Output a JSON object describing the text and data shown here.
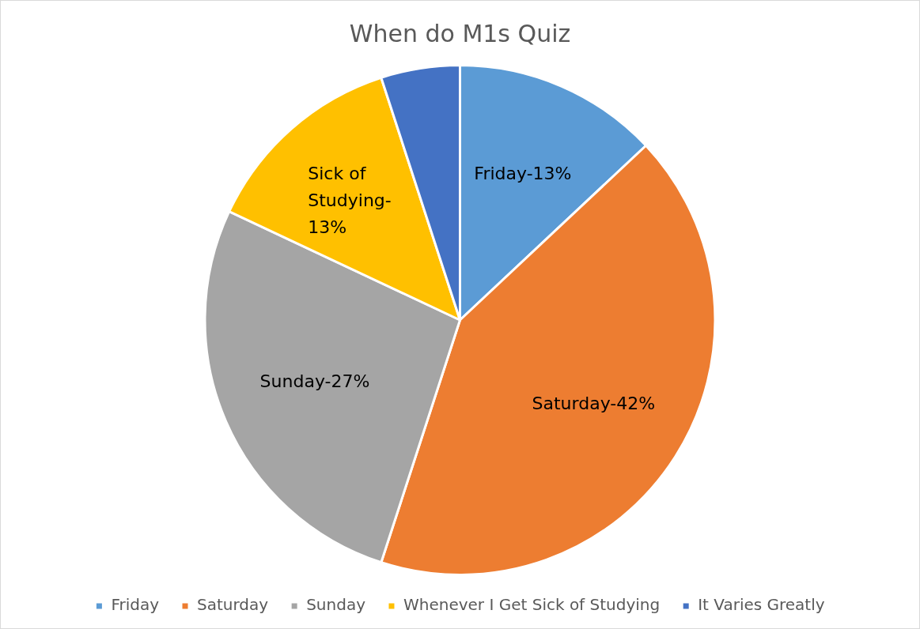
{
  "chart_data": {
    "type": "pie",
    "title": "When do M1s Quiz",
    "categories": [
      "Friday",
      "Saturday",
      "Sunday",
      "Whenever I Get Sick of Studying",
      "It Varies Greatly"
    ],
    "values": [
      13,
      42,
      27,
      13,
      5
    ],
    "colors": [
      "#5b9bd5",
      "#ed7d31",
      "#a5a5a5",
      "#ffc000",
      "#4472c4"
    ],
    "value_labels": [
      "Friday-13%",
      "Saturday-42%",
      "Sunday-27%",
      "Sick of Studying-13%",
      null
    ],
    "legend": "bottom"
  }
}
